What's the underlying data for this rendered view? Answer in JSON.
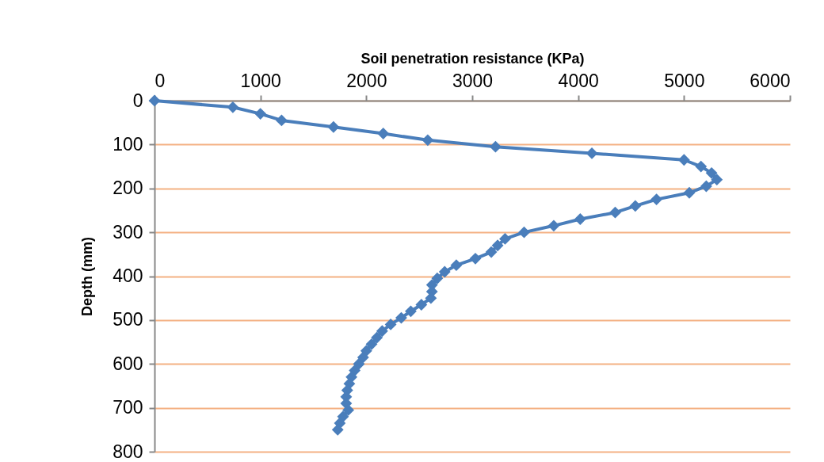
{
  "chart_data": {
    "type": "line",
    "xlabel": "Soil penetration resistance (KPa)",
    "ylabel": "Depth (mm)",
    "x": [
      0,
      740,
      1000,
      1200,
      1690,
      2160,
      2580,
      3220,
      4130,
      5000,
      5160,
      5260,
      5310,
      5210,
      5050,
      4740,
      4540,
      4350,
      4020,
      3770,
      3490,
      3310,
      3240,
      3180,
      3030,
      2850,
      2740,
      2670,
      2620,
      2620,
      2610,
      2520,
      2420,
      2330,
      2230,
      2150,
      2100,
      2050,
      2000,
      1970,
      1930,
      1890,
      1860,
      1840,
      1820,
      1810,
      1810,
      1830,
      1780,
      1750,
      1730
    ],
    "series": [
      {
        "color": "#4a7ebb",
        "values": [
          0,
          15,
          30,
          45,
          60,
          75,
          90,
          105,
          120,
          135,
          150,
          165,
          180,
          195,
          210,
          225,
          240,
          255,
          270,
          285,
          300,
          315,
          330,
          345,
          360,
          375,
          390,
          405,
          420,
          435,
          450,
          465,
          480,
          495,
          510,
          525,
          540,
          555,
          570,
          585,
          600,
          615,
          630,
          645,
          660,
          675,
          690,
          705,
          720,
          735,
          750
        ]
      }
    ],
    "xlim": [
      0,
      6000
    ],
    "xticks": [
      0,
      1000,
      2000,
      3000,
      4000,
      5000,
      6000
    ],
    "ylim": [
      800,
      0
    ],
    "yticks": [
      0,
      100,
      200,
      300,
      400,
      500,
      600,
      700,
      800
    ],
    "grid": "y",
    "marker": "diamond",
    "line_style": "solid"
  }
}
